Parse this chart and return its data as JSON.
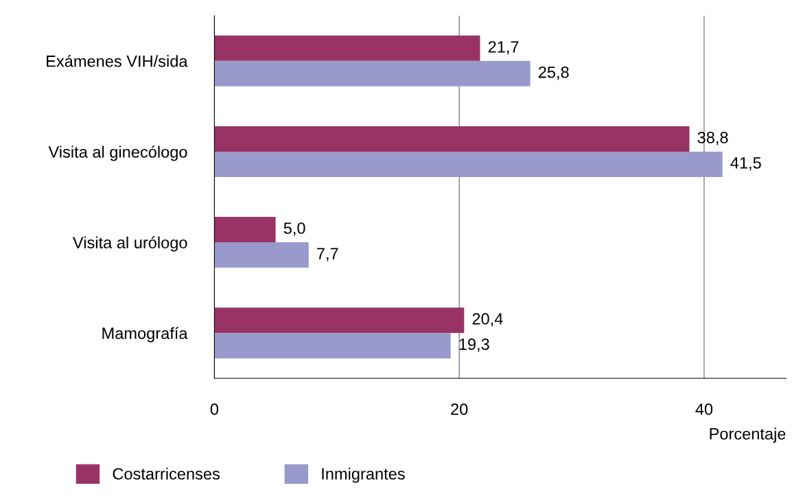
{
  "chart_data": {
    "type": "bar",
    "orientation": "horizontal",
    "xlabel": "Porcentaje",
    "categories": [
      "Exámenes VIH/sida",
      "Visita al ginecólogo",
      "Visita al urólogo",
      "Mamografía"
    ],
    "series": [
      {
        "name": "Costarricenses",
        "color": "#993366",
        "values": [
          21.7,
          38.8,
          5.0,
          20.4
        ],
        "value_labels": [
          "21,7",
          "38,8",
          "5,0",
          "20,4"
        ]
      },
      {
        "name": "Inmigrantes",
        "color": "#9999cc",
        "values": [
          25.8,
          41.5,
          7.7,
          19.3
        ],
        "value_labels": [
          "25,8",
          "41,5",
          "7,7",
          "19,3"
        ]
      }
    ],
    "xlim": [
      0,
      46.7
    ],
    "xticks": [
      0,
      20,
      40
    ],
    "grid": "x",
    "legend": "bottom"
  }
}
